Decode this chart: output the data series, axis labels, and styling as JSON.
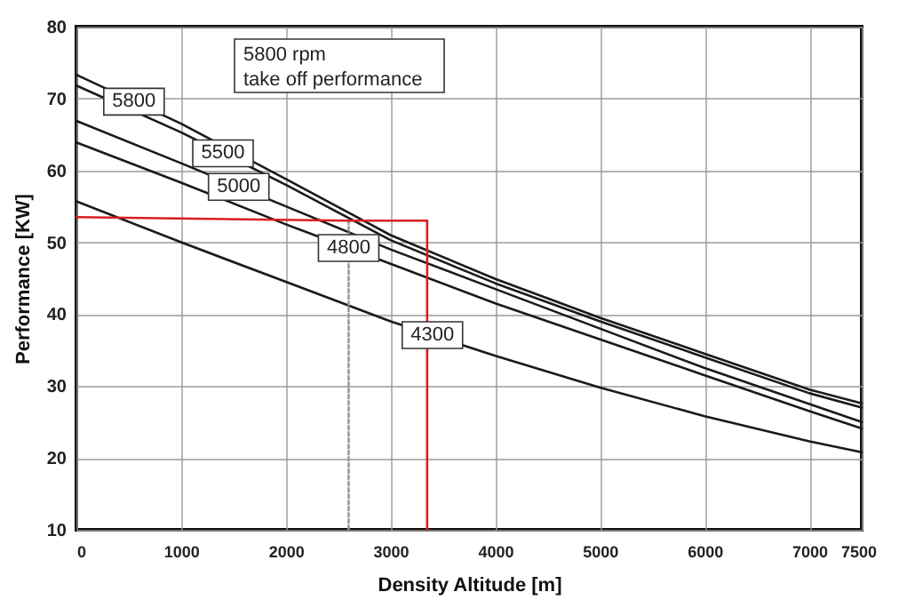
{
  "chart_data": {
    "type": "line",
    "xlabel": "Density Altitude [m]",
    "ylabel": "Performance [KW]",
    "annotations": [
      "5800 rpm",
      "take off performance"
    ],
    "xlim": [
      0,
      7500
    ],
    "ylim": [
      10,
      80
    ],
    "xticks": [
      0,
      1000,
      2000,
      3000,
      4000,
      5000,
      6000,
      7000,
      7500
    ],
    "yticks": [
      10,
      20,
      30,
      40,
      50,
      60,
      70,
      80
    ],
    "grid": true,
    "marker": "none",
    "x": [
      0,
      1000,
      2000,
      3000,
      4000,
      5000,
      6000,
      7000,
      7500
    ],
    "series": [
      {
        "name": "5800",
        "color": "#1a1a1a",
        "values": [
          73.3,
          66.5,
          58.8,
          51,
          44.9,
          39.5,
          34.5,
          29.5,
          27.6
        ]
      },
      {
        "name": "5500",
        "color": "#1a1a1a",
        "values": [
          71.8,
          65.3,
          58,
          50.3,
          44.3,
          39,
          34,
          29,
          27
        ]
      },
      {
        "name": "5000",
        "color": "#1a1a1a",
        "values": [
          66.9,
          61,
          55,
          49,
          43.5,
          38,
          32.5,
          27.5,
          25
        ]
      },
      {
        "name": "4800",
        "color": "#1a1a1a",
        "values": [
          63.9,
          58.3,
          52.5,
          47,
          41.5,
          36.5,
          31.5,
          26.5,
          24.1
        ]
      },
      {
        "name": "4300",
        "color": "#1a1a1a",
        "values": [
          55.7,
          50,
          44.5,
          39,
          34.2,
          29.8,
          25.8,
          22.3,
          20.8
        ]
      },
      {
        "color": "#999999",
        "line_style": "dotted",
        "x": [
          2600,
          2600
        ],
        "values": [
          53,
          10
        ]
      },
      {
        "color": "#d62020",
        "x": [
          0,
          2600,
          3350,
          3350,
          3350
        ],
        "values": [
          53.5,
          53,
          53,
          20,
          10
        ]
      }
    ]
  }
}
